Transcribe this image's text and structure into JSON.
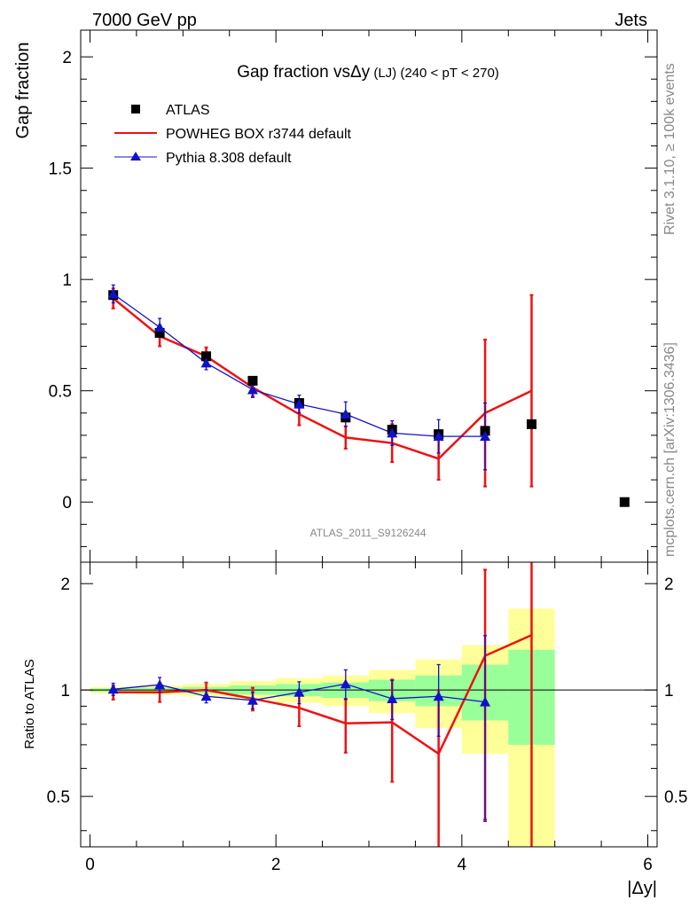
{
  "header": {
    "left": "7000 GeV pp",
    "right": "Jets"
  },
  "side_labels": {
    "rivet": "Rivet 3.1.10, ≥ 100k events",
    "mcplots": "mcplots.cern.ch [arXiv:1306.3436]"
  },
  "colors": {
    "data": "#000000",
    "powheg": "#ee1111",
    "pythia": "#1111cc",
    "band_inner": "#99ff99",
    "band_outer": "#ffff99"
  },
  "chart_data": [
    {
      "type": "scatter",
      "title_main": "Gap fraction vs",
      "title_symbol": "Δy",
      "title_suffix": " (LJ) (240 < pT < 270)",
      "ylabel": "Gap fraction",
      "watermark": "ATLAS_2011_S9126244",
      "xlim": [
        -0.1,
        6.1
      ],
      "ylim": [
        -0.27,
        2.12
      ],
      "yticks": [
        0,
        0.5,
        1,
        1.5,
        2
      ],
      "ytick_labels": [
        "0",
        "0.5",
        "1",
        "1.5",
        "2"
      ],
      "legend": {
        "position": "top-left",
        "entries": [
          "ATLAS",
          "POWHEG BOX r3744 default",
          "Pythia 8.308 default"
        ]
      },
      "series": [
        {
          "name": "ATLAS",
          "style": "square",
          "x": [
            0.25,
            0.75,
            1.25,
            1.75,
            2.25,
            2.75,
            3.25,
            3.75,
            4.25,
            4.75,
            5.75
          ],
          "y": [
            0.93,
            0.76,
            0.655,
            0.545,
            0.445,
            0.38,
            0.325,
            0.305,
            0.32,
            0.35,
            0.0
          ]
        },
        {
          "name": "POWHEG BOX r3744 default",
          "style": "line",
          "x": [
            0.25,
            0.75,
            1.25,
            1.75,
            2.25,
            2.75,
            3.25,
            3.75,
            4.25,
            4.75
          ],
          "y": [
            0.915,
            0.745,
            0.655,
            0.515,
            0.395,
            0.29,
            0.265,
            0.195,
            0.4,
            0.5
          ],
          "err_low": [
            0.045,
            0.045,
            0.04,
            0.04,
            0.05,
            0.05,
            0.085,
            0.095,
            0.33,
            0.43
          ],
          "err_high": [
            0.045,
            0.045,
            0.04,
            0.04,
            0.05,
            0.05,
            0.085,
            0.095,
            0.33,
            0.43
          ]
        },
        {
          "name": "Pythia 8.308 default",
          "style": "line-triangle",
          "x": [
            0.25,
            0.75,
            1.25,
            1.75,
            2.25,
            2.75,
            3.25,
            3.75,
            4.25
          ],
          "y": [
            0.935,
            0.785,
            0.625,
            0.505,
            0.44,
            0.395,
            0.31,
            0.295,
            0.295
          ],
          "err_low": [
            0.04,
            0.04,
            0.03,
            0.035,
            0.04,
            0.055,
            0.055,
            0.075,
            0.15
          ],
          "err_high": [
            0.04,
            0.04,
            0.03,
            0.035,
            0.04,
            0.055,
            0.055,
            0.075,
            0.15
          ]
        }
      ]
    },
    {
      "type": "line",
      "ylabel": "Ratio to ATLAS",
      "xlabel": "|Δy|",
      "xlim": [
        -0.1,
        6.1
      ],
      "ylim": [
        0.36,
        2.3
      ],
      "xticks": [
        0,
        2,
        4,
        6
      ],
      "xtick_labels": [
        "0",
        "2",
        "4",
        "6"
      ],
      "yticks": [
        0.5,
        1,
        2
      ],
      "ytick_labels": [
        "0.5",
        "1",
        "2"
      ],
      "reference_line": 1,
      "bands": {
        "bins": [
          [
            0,
            0.5
          ],
          [
            0.5,
            1
          ],
          [
            1,
            1.5
          ],
          [
            1.5,
            2
          ],
          [
            2,
            2.5
          ],
          [
            2.5,
            3
          ],
          [
            3,
            3.5
          ],
          [
            3.5,
            4
          ],
          [
            4,
            4.5
          ],
          [
            4.5,
            5
          ]
        ],
        "inner_half": [
          0.01,
          0.015,
          0.02,
          0.03,
          0.04,
          0.05,
          0.07,
          0.1,
          0.18,
          0.3
        ],
        "outer_half": [
          0.02,
          0.03,
          0.04,
          0.06,
          0.08,
          0.1,
          0.14,
          0.22,
          0.34,
          0.7
        ]
      },
      "series": [
        {
          "name": "POWHEG BOX r3744 default",
          "x": [
            0.25,
            0.75,
            1.25,
            1.75,
            2.25,
            2.75,
            3.25,
            3.75,
            4.25,
            4.75
          ],
          "y": [
            0.985,
            0.985,
            1.0,
            0.945,
            0.89,
            0.805,
            0.81,
            0.66,
            1.25,
            1.43
          ],
          "err_low": [
            0.045,
            0.06,
            0.05,
            0.07,
            0.1,
            0.14,
            0.26,
            0.34,
            0.82,
            1.1
          ],
          "err_high": [
            0.045,
            0.06,
            0.05,
            0.07,
            0.1,
            0.14,
            0.26,
            0.34,
            0.94,
            1.1
          ]
        },
        {
          "name": "Pythia 8.308 default",
          "x": [
            0.25,
            0.75,
            1.25,
            1.75,
            2.25,
            2.75,
            3.25,
            3.75,
            4.25
          ],
          "y": [
            1.005,
            1.035,
            0.96,
            0.935,
            0.985,
            1.04,
            0.945,
            0.96,
            0.925
          ],
          "err_low": [
            0.04,
            0.05,
            0.04,
            0.05,
            0.07,
            0.1,
            0.12,
            0.22,
            0.5
          ],
          "err_high": [
            0.04,
            0.05,
            0.04,
            0.05,
            0.07,
            0.1,
            0.12,
            0.22,
            0.5
          ]
        }
      ]
    }
  ]
}
